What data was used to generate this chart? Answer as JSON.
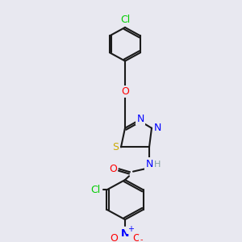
{
  "bg_color": "#e8e8f0",
  "bond_color": "#1a1a1a",
  "bond_width": 1.5,
  "atom_colors": {
    "Cl": "#00cc00",
    "O": "#ff0000",
    "N": "#0000ff",
    "S": "#ccaa00",
    "H": "#7fa0a0",
    "C": "#1a1a1a"
  },
  "font_size": 9,
  "font_size_small": 8
}
